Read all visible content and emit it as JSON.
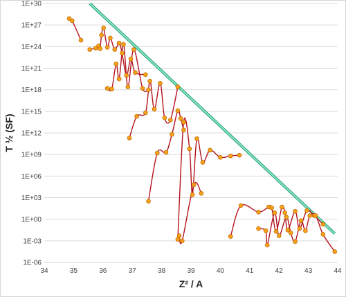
{
  "chart_data": {
    "type": "scatter",
    "title": "",
    "xlabel": "Z² / A",
    "ylabel": "T ½ (SF)",
    "xlim": [
      34,
      44
    ],
    "ylim_exponent": [
      -6,
      30
    ],
    "y_scale": "log",
    "x_ticks": [
      "34",
      "35",
      "36",
      "37",
      "38",
      "39",
      "40",
      "41",
      "42",
      "43",
      "44"
    ],
    "y_ticks": [
      "1E-06",
      "1E-03",
      "1E+00",
      "1E+03",
      "1E+06",
      "1E+09",
      "1E+12",
      "1E+15",
      "1E+18",
      "1E+21",
      "1E+24",
      "1E+27",
      "1E+30"
    ],
    "grid": "horizontal",
    "colors": {
      "line": "#b3121c",
      "marker_fill": "#f7a21b",
      "trend_line": "#3cc98f"
    },
    "trend_line": {
      "x": [
        35.55,
        43.9
      ],
      "log10_y": [
        30,
        -2
      ]
    },
    "series": [
      {
        "x": [
          34.85,
          34.95,
          35.25
        ],
        "log10_y": [
          27.9,
          27.6,
          24.9
        ]
      },
      {
        "x": [
          35.55,
          35.75,
          35.85,
          35.9,
          35.95,
          36.02,
          36.15,
          36.25,
          36.4,
          36.55,
          36.65,
          36.8,
          36.95,
          37.1,
          37.45
        ],
        "log10_y": [
          23.6,
          23.8,
          24.1,
          23.7,
          25.6,
          26.6,
          23.9,
          25.2,
          23.6,
          24.5,
          23.1,
          20.0,
          22.3,
          20.4,
          20.1
        ]
      },
      {
        "x": [
          36.15,
          36.3,
          36.45,
          36.55,
          36.7,
          36.85,
          37.05,
          37.35,
          37.55
        ],
        "log10_y": [
          18.2,
          18.1,
          21.6,
          19.5,
          24.3,
          18.4,
          23.6,
          18.2,
          18.0
        ]
      },
      {
        "x": [
          36.9,
          37.15,
          37.45,
          37.6,
          37.75,
          37.95,
          38.1,
          38.3,
          38.55
        ],
        "log10_y": [
          11.3,
          14.3,
          14.8,
          19.2,
          15.3,
          18.9,
          14.1,
          13.8,
          18.4
        ]
      },
      {
        "x": [
          37.55,
          37.85,
          38.15,
          38.35,
          38.55,
          38.65,
          38.75
        ],
        "log10_y": [
          2.5,
          9.2,
          9.3,
          11.8,
          15.1,
          14.0,
          12.4
        ]
      },
      {
        "x": [
          38.55,
          38.75,
          38.95,
          39.05,
          39.2,
          39.4,
          39.65,
          40.0,
          40.35,
          40.65
        ],
        "log10_y": [
          -2.8,
          13.5,
          9.8,
          3.4,
          11.2,
          7.9,
          9.6,
          8.6,
          8.8,
          8.9
        ]
      },
      {
        "x": [
          38.6,
          38.7,
          39.1,
          39.35
        ],
        "log10_y": [
          -2.3,
          -3.0,
          4.8,
          3.6
        ]
      },
      {
        "x": [
          40.35,
          40.7,
          41.3,
          41.65,
          41.75,
          41.9,
          42.1,
          42.2,
          42.3,
          42.55,
          42.7,
          42.95,
          43.2,
          43.5
        ],
        "log10_y": [
          -2.4,
          1.9,
          1.0,
          1.7,
          1.6,
          -1.7,
          1.7,
          0.9,
          -1.5,
          1.1,
          -1.3,
          1.2,
          0.5,
          -0.7
        ]
      },
      {
        "x": [
          41.3,
          41.55,
          41.6,
          41.85,
          42.0,
          42.25,
          42.4,
          42.55,
          42.75,
          42.9,
          43.05,
          43.25,
          43.5,
          43.9
        ],
        "log10_y": [
          -1.3,
          -1.6,
          -3.6,
          0.9,
          -2.3,
          0.3,
          -1.9,
          -3.1,
          -0.2,
          -1.6,
          0.5,
          0.5,
          -2.1,
          -4.5
        ]
      }
    ]
  }
}
